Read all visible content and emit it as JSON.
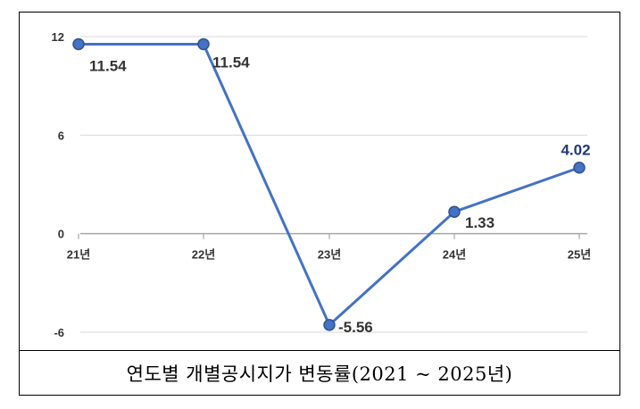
{
  "chart_data": {
    "type": "line",
    "categories": [
      "21년",
      "22년",
      "23년",
      "24년",
      "25년"
    ],
    "series": [
      {
        "values": [
          11.54,
          11.54,
          -5.56,
          1.33,
          4.02
        ]
      }
    ],
    "data_labels": [
      "11.54",
      "11.54",
      "-5.56",
      "1.33",
      "4.02"
    ],
    "y_ticks": [
      -6,
      0,
      6,
      12
    ],
    "y_tick_labels": [
      "-6",
      "0",
      "6",
      "12"
    ],
    "ylim": [
      -6,
      12
    ],
    "grid": true,
    "line_color": "#4472C4",
    "highlight_label_color": "#1F3A78",
    "label_color": "#333333"
  },
  "caption": "연도별 개별공시지가 변동률(2021 ~ 2025년)"
}
